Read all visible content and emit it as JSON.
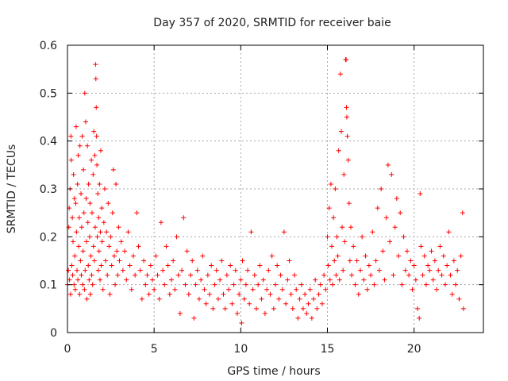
{
  "chart_data": {
    "type": "scatter",
    "title": "Day 357 of 2020, SRMTID for receiver baie",
    "xlabel": "GPS time / hours",
    "ylabel": "SRMTID / TECUs",
    "xlim": [
      0,
      24
    ],
    "ylim": [
      0,
      0.6
    ],
    "x_ticks": [
      0,
      5,
      10,
      15,
      20
    ],
    "y_ticks": [
      0,
      0.1,
      0.2,
      0.3,
      0.4,
      0.5,
      0.6
    ],
    "x_tick_labels": [
      "0",
      "5",
      "10",
      "15",
      "20"
    ],
    "y_tick_labels": [
      "0",
      "0.1",
      "0.2",
      "0.3",
      "0.4",
      "0.5",
      "0.6"
    ],
    "grid": true,
    "marker": "+",
    "series": [
      {
        "name": "SRMTID",
        "color": "#ff0000",
        "points": [
          [
            0.0,
            0.1
          ],
          [
            0.05,
            0.13
          ],
          [
            0.08,
            0.22
          ],
          [
            0.1,
            0.26
          ],
          [
            0.12,
            0.11
          ],
          [
            0.15,
            0.3
          ],
          [
            0.18,
            0.08
          ],
          [
            0.2,
            0.41
          ],
          [
            0.22,
            0.36
          ],
          [
            0.25,
            0.14
          ],
          [
            0.28,
            0.24
          ],
          [
            0.3,
            0.12
          ],
          [
            0.32,
            0.19
          ],
          [
            0.35,
            0.33
          ],
          [
            0.38,
            0.1
          ],
          [
            0.4,
            0.28
          ],
          [
            0.42,
            0.16
          ],
          [
            0.45,
            0.09
          ],
          [
            0.48,
            0.27
          ],
          [
            0.5,
            0.43
          ],
          [
            0.52,
            0.21
          ],
          [
            0.55,
            0.13
          ],
          [
            0.58,
            0.31
          ],
          [
            0.6,
            0.11
          ],
          [
            0.62,
            0.37
          ],
          [
            0.65,
            0.18
          ],
          [
            0.68,
            0.24
          ],
          [
            0.7,
            0.08
          ],
          [
            0.72,
            0.39
          ],
          [
            0.75,
            0.15
          ],
          [
            0.78,
            0.29
          ],
          [
            0.8,
            0.12
          ],
          [
            0.82,
            0.22
          ],
          [
            0.85,
            0.41
          ],
          [
            0.88,
            0.1
          ],
          [
            0.9,
            0.17
          ],
          [
            0.92,
            0.34
          ],
          [
            0.95,
            0.25
          ],
          [
            0.98,
            0.09
          ],
          [
            1.0,
            0.5
          ],
          [
            1.02,
            0.13
          ],
          [
            1.05,
            0.44
          ],
          [
            1.08,
            0.28
          ],
          [
            1.1,
            0.19
          ],
          [
            1.12,
            0.07
          ],
          [
            1.15,
            0.39
          ],
          [
            1.18,
            0.23
          ],
          [
            1.2,
            0.14
          ],
          [
            1.22,
            0.31
          ],
          [
            1.25,
            0.11
          ],
          [
            1.28,
            0.2
          ],
          [
            1.3,
            0.27
          ],
          [
            1.32,
            0.08
          ],
          [
            1.35,
            0.16
          ],
          [
            1.38,
            0.36
          ],
          [
            1.4,
            0.12
          ],
          [
            1.42,
            0.25
          ],
          [
            1.45,
            0.1
          ],
          [
            1.48,
            0.33
          ],
          [
            1.5,
            0.18
          ],
          [
            1.52,
            0.42
          ],
          [
            1.55,
            0.15
          ],
          [
            1.58,
            0.37
          ],
          [
            1.6,
            0.22
          ],
          [
            1.62,
            0.56
          ],
          [
            1.64,
            0.53
          ],
          [
            1.66,
            0.47
          ],
          [
            1.68,
            0.41
          ],
          [
            1.7,
            0.35
          ],
          [
            1.72,
            0.2
          ],
          [
            1.75,
            0.29
          ],
          [
            1.78,
            0.13
          ],
          [
            1.8,
            0.24
          ],
          [
            1.82,
            0.17
          ],
          [
            1.85,
            0.31
          ],
          [
            1.88,
            0.11
          ],
          [
            1.9,
            0.21
          ],
          [
            1.92,
            0.38
          ],
          [
            1.95,
            0.14
          ],
          [
            1.98,
            0.26
          ],
          [
            2.0,
            0.19
          ],
          [
            2.05,
            0.09
          ],
          [
            2.1,
            0.23
          ],
          [
            2.15,
            0.3
          ],
          [
            2.2,
            0.15
          ],
          [
            2.25,
            0.21
          ],
          [
            2.3,
            0.12
          ],
          [
            2.35,
            0.27
          ],
          [
            2.4,
            0.18
          ],
          [
            2.45,
            0.08
          ],
          [
            2.5,
            0.2
          ],
          [
            2.55,
            0.14
          ],
          [
            2.6,
            0.25
          ],
          [
            2.65,
            0.34
          ],
          [
            2.7,
            0.16
          ],
          [
            2.75,
            0.1
          ],
          [
            2.8,
            0.31
          ],
          [
            2.85,
            0.17
          ],
          [
            2.9,
            0.12
          ],
          [
            2.95,
            0.22
          ],
          [
            3.0,
            0.15
          ],
          [
            3.1,
            0.19
          ],
          [
            3.2,
            0.13
          ],
          [
            3.3,
            0.17
          ],
          [
            3.4,
            0.11
          ],
          [
            3.5,
            0.21
          ],
          [
            3.6,
            0.14
          ],
          [
            3.7,
            0.09
          ],
          [
            3.8,
            0.16
          ],
          [
            3.9,
            0.12
          ],
          [
            4.0,
            0.25
          ],
          [
            4.1,
            0.18
          ],
          [
            4.2,
            0.13
          ],
          [
            4.3,
            0.07
          ],
          [
            4.4,
            0.15
          ],
          [
            4.5,
            0.1
          ],
          [
            4.6,
            0.12
          ],
          [
            4.7,
            0.08
          ],
          [
            4.8,
            0.14
          ],
          [
            4.9,
            0.11
          ],
          [
            5.0,
            0.09
          ],
          [
            5.1,
            0.16
          ],
          [
            5.2,
            0.12
          ],
          [
            5.3,
            0.07
          ],
          [
            5.4,
            0.23
          ],
          [
            5.5,
            0.13
          ],
          [
            5.6,
            0.1
          ],
          [
            5.7,
            0.18
          ],
          [
            5.8,
            0.14
          ],
          [
            5.9,
            0.08
          ],
          [
            6.0,
            0.11
          ],
          [
            6.1,
            0.15
          ],
          [
            6.2,
            0.09
          ],
          [
            6.3,
            0.2
          ],
          [
            6.4,
            0.12
          ],
          [
            6.5,
            0.04
          ],
          [
            6.6,
            0.13
          ],
          [
            6.7,
            0.24
          ],
          [
            6.8,
            0.1
          ],
          [
            6.9,
            0.17
          ],
          [
            7.0,
            0.08
          ],
          [
            7.1,
            0.12
          ],
          [
            7.2,
            0.15
          ],
          [
            7.3,
            0.03
          ],
          [
            7.4,
            0.1
          ],
          [
            7.5,
            0.13
          ],
          [
            7.6,
            0.07
          ],
          [
            7.7,
            0.11
          ],
          [
            7.8,
            0.16
          ],
          [
            7.9,
            0.09
          ],
          [
            8.0,
            0.06
          ],
          [
            8.1,
            0.12
          ],
          [
            8.2,
            0.08
          ],
          [
            8.3,
            0.14
          ],
          [
            8.4,
            0.05
          ],
          [
            8.5,
            0.1
          ],
          [
            8.6,
            0.13
          ],
          [
            8.7,
            0.07
          ],
          [
            8.8,
            0.11
          ],
          [
            8.9,
            0.15
          ],
          [
            9.0,
            0.08
          ],
          [
            9.1,
            0.05
          ],
          [
            9.2,
            0.12
          ],
          [
            9.3,
            0.09
          ],
          [
            9.4,
            0.14
          ],
          [
            9.5,
            0.06
          ],
          [
            9.6,
            0.1
          ],
          [
            9.7,
            0.13
          ],
          [
            9.8,
            0.04
          ],
          [
            9.9,
            0.08
          ],
          [
            10.0,
            0.11
          ],
          [
            10.05,
            0.02
          ],
          [
            10.1,
            0.15
          ],
          [
            10.2,
            0.07
          ],
          [
            10.3,
            0.1
          ],
          [
            10.4,
            0.13
          ],
          [
            10.5,
            0.06
          ],
          [
            10.6,
            0.21
          ],
          [
            10.7,
            0.09
          ],
          [
            10.8,
            0.12
          ],
          [
            10.9,
            0.05
          ],
          [
            11.0,
            0.1
          ],
          [
            11.1,
            0.14
          ],
          [
            11.2,
            0.07
          ],
          [
            11.3,
            0.11
          ],
          [
            11.4,
            0.04
          ],
          [
            11.5,
            0.09
          ],
          [
            11.6,
            0.13
          ],
          [
            11.7,
            0.08
          ],
          [
            11.8,
            0.16
          ],
          [
            11.9,
            0.05
          ],
          [
            12.0,
            0.1
          ],
          [
            12.1,
            0.14
          ],
          [
            12.2,
            0.07
          ],
          [
            12.3,
            0.12
          ],
          [
            12.4,
            0.09
          ],
          [
            12.5,
            0.21
          ],
          [
            12.6,
            0.06
          ],
          [
            12.7,
            0.11
          ],
          [
            12.8,
            0.15
          ],
          [
            12.9,
            0.08
          ],
          [
            13.0,
            0.05
          ],
          [
            13.1,
            0.12
          ],
          [
            13.2,
            0.09
          ],
          [
            13.3,
            0.03
          ],
          [
            13.4,
            0.07
          ],
          [
            13.5,
            0.1
          ],
          [
            13.6,
            0.05
          ],
          [
            13.7,
            0.08
          ],
          [
            13.8,
            0.04
          ],
          [
            13.9,
            0.06
          ],
          [
            14.0,
            0.09
          ],
          [
            14.1,
            0.03
          ],
          [
            14.2,
            0.07
          ],
          [
            14.3,
            0.11
          ],
          [
            14.4,
            0.05
          ],
          [
            14.5,
            0.08
          ],
          [
            14.6,
            0.1
          ],
          [
            14.7,
            0.06
          ],
          [
            14.8,
            0.12
          ],
          [
            14.9,
            0.09
          ],
          [
            15.0,
            0.2
          ],
          [
            15.05,
            0.14
          ],
          [
            15.1,
            0.26
          ],
          [
            15.15,
            0.11
          ],
          [
            15.2,
            0.31
          ],
          [
            15.25,
            0.18
          ],
          [
            15.3,
            0.1
          ],
          [
            15.35,
            0.24
          ],
          [
            15.4,
            0.15
          ],
          [
            15.45,
            0.3
          ],
          [
            15.5,
            0.12
          ],
          [
            15.55,
            0.2
          ],
          [
            15.6,
            0.16
          ],
          [
            15.65,
            0.38
          ],
          [
            15.7,
            0.11
          ],
          [
            15.75,
            0.54
          ],
          [
            15.8,
            0.42
          ],
          [
            15.85,
            0.22
          ],
          [
            15.9,
            0.13
          ],
          [
            15.95,
            0.33
          ],
          [
            16.0,
            0.19
          ],
          [
            16.05,
            0.57
          ],
          [
            16.08,
            0.57
          ],
          [
            16.1,
            0.47
          ],
          [
            16.12,
            0.45
          ],
          [
            16.15,
            0.41
          ],
          [
            16.2,
            0.36
          ],
          [
            16.25,
            0.27
          ],
          [
            16.3,
            0.15
          ],
          [
            16.35,
            0.22
          ],
          [
            16.4,
            0.12
          ],
          [
            16.5,
            0.18
          ],
          [
            16.6,
            0.1
          ],
          [
            16.7,
            0.15
          ],
          [
            16.8,
            0.08
          ],
          [
            16.9,
            0.13
          ],
          [
            17.0,
            0.2
          ],
          [
            17.1,
            0.11
          ],
          [
            17.2,
            0.16
          ],
          [
            17.3,
            0.09
          ],
          [
            17.4,
            0.14
          ],
          [
            17.5,
            0.12
          ],
          [
            17.6,
            0.21
          ],
          [
            17.7,
            0.1
          ],
          [
            17.8,
            0.15
          ],
          [
            17.9,
            0.26
          ],
          [
            18.0,
            0.13
          ],
          [
            18.1,
            0.3
          ],
          [
            18.2,
            0.17
          ],
          [
            18.3,
            0.11
          ],
          [
            18.4,
            0.24
          ],
          [
            18.5,
            0.35
          ],
          [
            18.6,
            0.19
          ],
          [
            18.7,
            0.33
          ],
          [
            18.8,
            0.12
          ],
          [
            18.9,
            0.22
          ],
          [
            19.0,
            0.28
          ],
          [
            19.1,
            0.16
          ],
          [
            19.2,
            0.25
          ],
          [
            19.3,
            0.1
          ],
          [
            19.4,
            0.2
          ],
          [
            19.5,
            0.13
          ],
          [
            19.6,
            0.17
          ],
          [
            19.7,
            0.12
          ],
          [
            19.8,
            0.15
          ],
          [
            19.9,
            0.09
          ],
          [
            20.0,
            0.14
          ],
          [
            20.1,
            0.11
          ],
          [
            20.2,
            0.05
          ],
          [
            20.3,
            0.03
          ],
          [
            20.35,
            0.29
          ],
          [
            20.4,
            0.18
          ],
          [
            20.5,
            0.12
          ],
          [
            20.6,
            0.16
          ],
          [
            20.7,
            0.1
          ],
          [
            20.8,
            0.14
          ],
          [
            20.9,
            0.13
          ],
          [
            21.0,
            0.17
          ],
          [
            21.1,
            0.11
          ],
          [
            21.2,
            0.15
          ],
          [
            21.3,
            0.09
          ],
          [
            21.4,
            0.13
          ],
          [
            21.5,
            0.18
          ],
          [
            21.6,
            0.12
          ],
          [
            21.7,
            0.16
          ],
          [
            21.8,
            0.1
          ],
          [
            21.9,
            0.14
          ],
          [
            22.0,
            0.21
          ],
          [
            22.1,
            0.12
          ],
          [
            22.2,
            0.08
          ],
          [
            22.3,
            0.15
          ],
          [
            22.4,
            0.1
          ],
          [
            22.5,
            0.13
          ],
          [
            22.6,
            0.07
          ],
          [
            22.7,
            0.16
          ],
          [
            22.8,
            0.25
          ],
          [
            22.85,
            0.05
          ]
        ]
      }
    ]
  }
}
